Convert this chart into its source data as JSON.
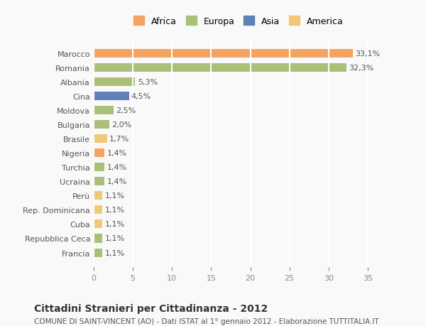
{
  "countries": [
    "Francia",
    "Repubblica Ceca",
    "Cuba",
    "Rep. Dominicana",
    "Perù",
    "Ucraina",
    "Turchia",
    "Nigeria",
    "Brasile",
    "Bulgaria",
    "Moldova",
    "Cina",
    "Albania",
    "Romania",
    "Marocco"
  ],
  "values": [
    1.1,
    1.1,
    1.1,
    1.1,
    1.1,
    1.4,
    1.4,
    1.4,
    1.7,
    2.0,
    2.5,
    4.5,
    5.3,
    32.3,
    33.1
  ],
  "labels": [
    "1,1%",
    "1,1%",
    "1,1%",
    "1,1%",
    "1,1%",
    "1,4%",
    "1,4%",
    "1,4%",
    "1,7%",
    "2,0%",
    "2,5%",
    "4,5%",
    "5,3%",
    "32,3%",
    "33,1%"
  ],
  "continents": [
    "Europa",
    "Europa",
    "America",
    "America",
    "America",
    "Europa",
    "Europa",
    "Africa",
    "America",
    "Europa",
    "Europa",
    "Asia",
    "Europa",
    "Europa",
    "Africa"
  ],
  "colors": {
    "Africa": "#F4A460",
    "Europa": "#AABF77",
    "Asia": "#6080B8",
    "America": "#F0C878"
  },
  "bar_colors": [
    "#AABF77",
    "#AABF77",
    "#F0C878",
    "#F0C878",
    "#F0C878",
    "#AABF77",
    "#AABF77",
    "#F4A460",
    "#F0C878",
    "#AABF77",
    "#AABF77",
    "#6080B8",
    "#AABF77",
    "#AABF77",
    "#F4A460"
  ],
  "legend_order": [
    "Africa",
    "Europa",
    "Asia",
    "America"
  ],
  "legend_colors": [
    "#F4A460",
    "#AABF77",
    "#6080B8",
    "#F0C878"
  ],
  "title": "Cittadini Stranieri per Cittadinanza - 2012",
  "subtitle": "COMUNE DI SAINT-VINCENT (AO) - Dati ISTAT al 1° gennaio 2012 - Elaborazione TUTTITALIA.IT",
  "xlim": [
    0,
    37
  ],
  "xticks": [
    0,
    5,
    10,
    15,
    20,
    25,
    30,
    35
  ],
  "background_color": "#f9f9f9",
  "grid_color": "#ffffff"
}
